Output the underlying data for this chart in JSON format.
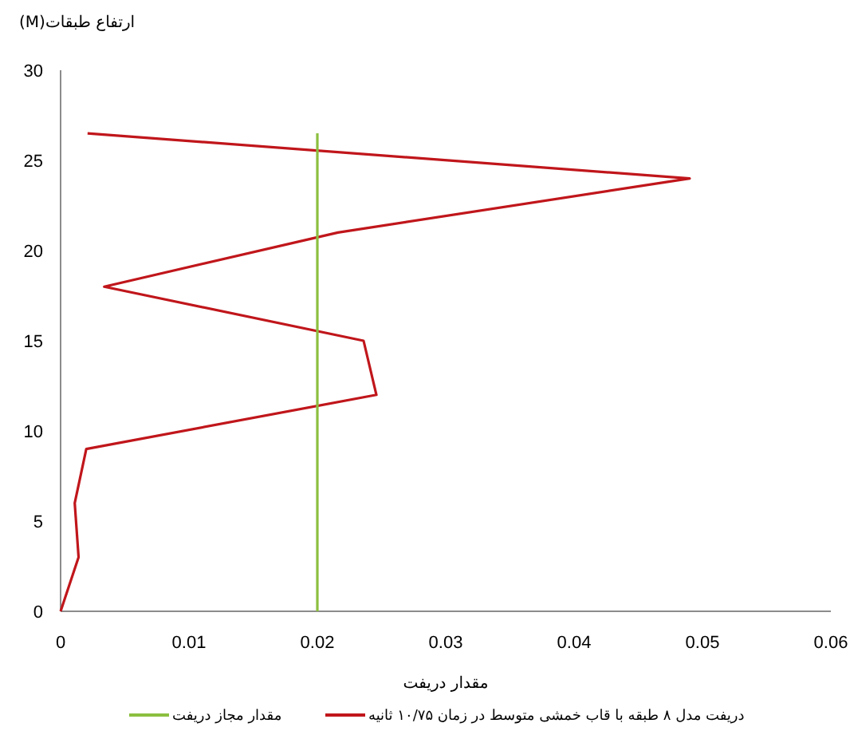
{
  "chart_data": {
    "type": "line",
    "xlabel": "مقدار دریفت",
    "ylabel": "ارتفاع طبقات(M)",
    "xlim": [
      0,
      0.06
    ],
    "xticks": [
      0,
      0.01,
      0.02,
      0.03,
      0.04,
      0.05,
      0.06
    ],
    "ylim": [
      0,
      30
    ],
    "yticks": [
      0,
      5,
      10,
      15,
      20,
      25,
      30
    ],
    "grid": false,
    "legend": "bottom",
    "marker": "none",
    "line_style": "solid",
    "series": [
      {
        "name": "دریفت مدل ۸ طبقه با قاب خمشی متوسط در زمان ۱۰/۷۵ ثانیه",
        "color": "#c0161b",
        "x": [
          0,
          0.0014,
          0.0011,
          0.002,
          0.0246,
          0.0236,
          0.0034,
          0.0216,
          0.049,
          0.0021
        ],
        "values": [
          0,
          3,
          6,
          9,
          12,
          15,
          18,
          21,
          24,
          26.5
        ]
      },
      {
        "name": "مقدار مجاز دریفت",
        "color": "#8cbf3f",
        "x": [
          0.02,
          0.02
        ],
        "values": [
          0,
          26.5
        ]
      }
    ]
  }
}
